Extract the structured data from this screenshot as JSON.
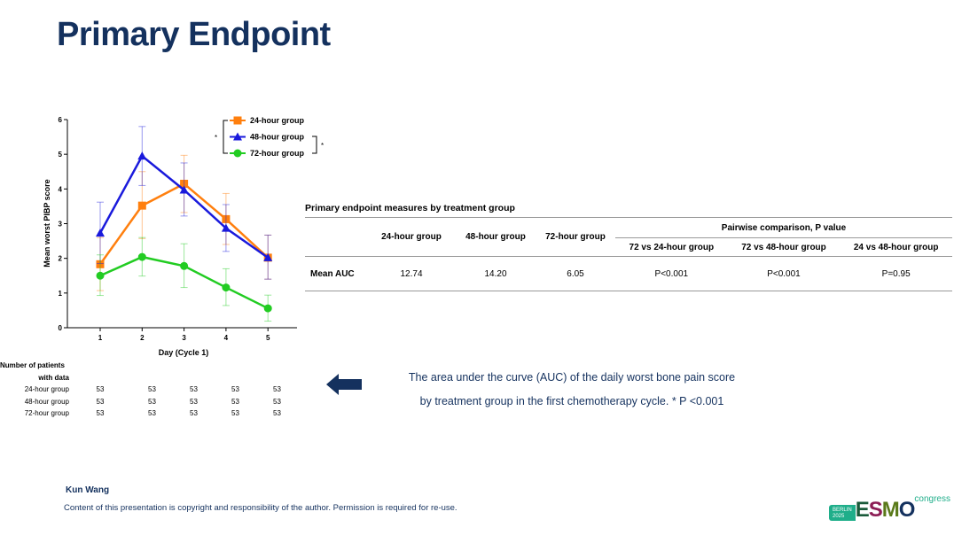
{
  "title": "Primary Endpoint",
  "chart_data": {
    "type": "line",
    "xlabel": "Day (Cycle 1)",
    "ylabel": "Mean worst PIBP score",
    "x": [
      1,
      2,
      3,
      4,
      5
    ],
    "ylim": [
      0,
      6
    ],
    "yticks": [
      0,
      1,
      2,
      3,
      4,
      5,
      6
    ],
    "legend_position": "top-right",
    "significance_marker": "*",
    "series": [
      {
        "name": "24-hour group",
        "color": "#ff7f0e",
        "marker": "square",
        "values": [
          1.83,
          3.52,
          4.15,
          3.13,
          2.02
        ],
        "upper": [
          2.6,
          4.5,
          4.97,
          3.87,
          2.67
        ],
        "lower": [
          1.07,
          2.57,
          3.32,
          2.4,
          1.4
        ]
      },
      {
        "name": "48-hour group",
        "color": "#1a1adc",
        "marker": "triangle",
        "values": [
          2.73,
          4.95,
          3.97,
          2.87,
          2.02
        ],
        "upper": [
          3.62,
          5.8,
          4.75,
          3.55,
          2.67
        ],
        "lower": [
          1.85,
          4.1,
          3.22,
          2.2,
          1.4
        ]
      },
      {
        "name": "72-hour group",
        "color": "#22cc22",
        "marker": "circle",
        "values": [
          1.5,
          2.04,
          1.78,
          1.16,
          0.56
        ],
        "upper": [
          2.1,
          2.6,
          2.42,
          1.7,
          0.94
        ],
        "lower": [
          0.93,
          1.49,
          1.16,
          0.64,
          0.19
        ]
      }
    ]
  },
  "patients": {
    "header1": "Number of patients",
    "header2": "with data",
    "rows": [
      {
        "label": "24-hour group",
        "values": [
          "53",
          "53",
          "53",
          "53",
          "53"
        ]
      },
      {
        "label": "48-hour group",
        "values": [
          "53",
          "53",
          "53",
          "53",
          "53"
        ]
      },
      {
        "label": "72-hour group",
        "values": [
          "53",
          "53",
          "53",
          "53",
          "53"
        ]
      }
    ]
  },
  "table": {
    "caption": "Primary endpoint measures by treatment group",
    "cols": [
      "24-hour group",
      "48-hour group",
      "72-hour group"
    ],
    "pairwise_header": "Pairwise comparison, P value",
    "pair_cols": [
      "72 vs 24-hour group",
      "72 vs 48-hour group",
      "24 vs 48-hour group"
    ],
    "row_label": "Mean AUC",
    "values": [
      "12.74",
      "14.20",
      "6.05",
      "P<0.001",
      "P<0.001",
      "P=0.95"
    ]
  },
  "caption_line1": "The area under the curve (AUC) of the daily worst bone pain score",
  "caption_line2": "by treatment group in the first chemotherapy cycle. * P <0.001",
  "arrow_color": "#14315e",
  "author": "Kun Wang",
  "copyright": "Content of this presentation is copyright and responsibility of the author. Permission is required for re-use.",
  "logo": {
    "city": "BERLIN",
    "year": "2025",
    "brand": "ESMO",
    "suffix": "congress"
  }
}
